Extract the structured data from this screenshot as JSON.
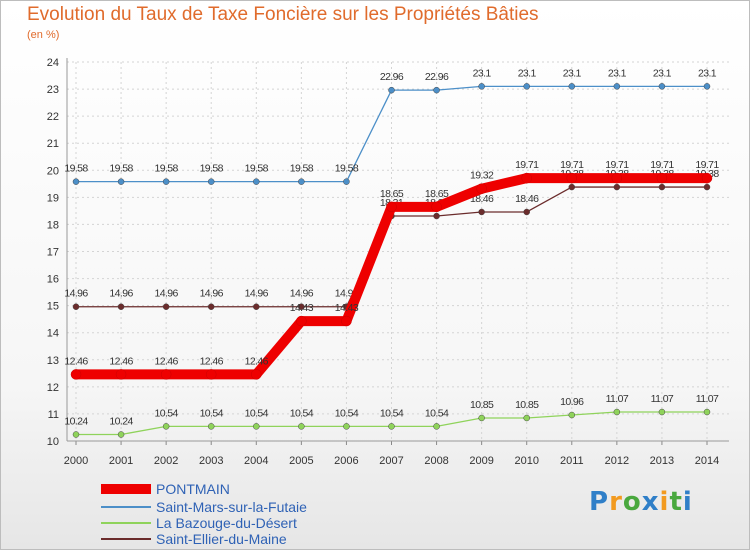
{
  "chart_data": {
    "type": "line",
    "title": "Evolution du Taux de Taxe Foncière sur les Propriétés Bâties",
    "subtitle": "(en %)",
    "xlabel": "",
    "ylabel": "",
    "ylim": [
      10,
      24
    ],
    "yticks": [
      "10",
      "11",
      "12",
      "13",
      "14",
      "15",
      "16",
      "17",
      "18",
      "19",
      "20",
      "21",
      "22",
      "23",
      "24"
    ],
    "categories": [
      "2000",
      "2001",
      "2002",
      "2003",
      "2004",
      "2005",
      "2006",
      "2007",
      "2008",
      "2009",
      "2010",
      "2011",
      "2012",
      "2013",
      "2014"
    ],
    "grid": true,
    "series": [
      {
        "name": "Saint-Mars-sur-la-Futaie",
        "color": "#4c8fc8",
        "values": [
          19.58,
          19.58,
          19.58,
          19.58,
          19.58,
          19.58,
          19.58,
          22.96,
          22.96,
          23.1,
          23.1,
          23.1,
          23.1,
          23.1,
          23.1
        ],
        "labels": [
          "19.58",
          "19.58",
          "19.58",
          "19.58",
          "19.58",
          "19.58",
          "19.58",
          "22.96",
          "22.96",
          "23.1",
          "23.1",
          "23.1",
          "23.1",
          "23.1",
          "23.1"
        ]
      },
      {
        "name": "Saint-Ellier-du-Maine",
        "color": "#6b2c2c",
        "values": [
          14.96,
          14.96,
          14.96,
          14.96,
          14.96,
          14.96,
          14.96,
          18.31,
          18.31,
          18.46,
          18.46,
          19.38,
          19.38,
          19.38,
          19.38
        ],
        "labels": [
          "14.96",
          "14.96",
          "14.96",
          "14.96",
          "14.96",
          "14.96",
          "14.96",
          "18.31",
          "18.31",
          "18.46",
          "18.46",
          "19.38",
          "19.38",
          "19.38",
          "19.38"
        ]
      },
      {
        "name": "La Bazouge-du-Désert",
        "color": "#8fd35b",
        "values": [
          10.24,
          10.24,
          10.54,
          10.54,
          10.54,
          10.54,
          10.54,
          10.54,
          10.54,
          10.85,
          10.85,
          10.96,
          11.07,
          11.07,
          11.07
        ],
        "labels": [
          "10.24",
          "10.24",
          "10.54",
          "10.54",
          "10.54",
          "10.54",
          "10.54",
          "10.54",
          "10.54",
          "10.85",
          "10.85",
          "10.96",
          "11.07",
          "11.07",
          "11.07"
        ]
      },
      {
        "name": "PONTMAIN",
        "color": "#ee0000",
        "values": [
          12.46,
          12.46,
          12.46,
          12.46,
          12.46,
          14.43,
          14.43,
          18.65,
          18.65,
          19.32,
          19.71,
          19.71,
          19.71,
          19.71,
          19.71
        ],
        "labels": [
          "12.46",
          "12.46",
          "12.46",
          "12.46",
          "12.46",
          "14.43",
          "14.43",
          "18.65",
          "18.65",
          "19.32",
          "19.71",
          "19.71",
          "19.71",
          "19.71",
          "19.71"
        ]
      }
    ]
  },
  "legend": [
    {
      "label": "PONTMAIN",
      "color": "#ee0000"
    },
    {
      "label": "Saint-Mars-sur-la-Futaie",
      "color": "#4c8fc8"
    },
    {
      "label": "La Bazouge-du-Désert",
      "color": "#8fd35b"
    },
    {
      "label": "Saint-Ellier-du-Maine",
      "color": "#6b2c2c"
    }
  ],
  "logo": {
    "letters": [
      "P",
      "r",
      "o",
      "x",
      "i",
      "t",
      "i"
    ],
    "colors": [
      "#2f7fc8",
      "#f29a1f",
      "#49a83e",
      "#2f7fc8",
      "#f29a1f",
      "#49a83e",
      "#2f7fc8"
    ]
  }
}
